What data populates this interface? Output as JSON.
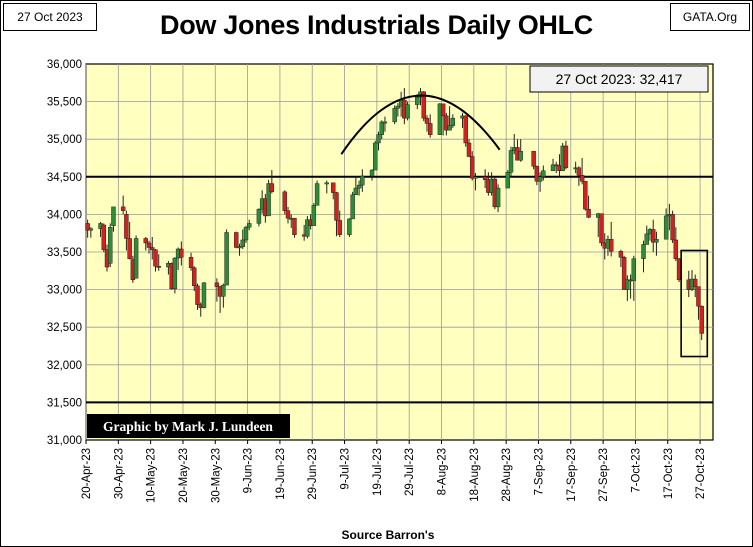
{
  "header": {
    "date": "27 Oct 2023",
    "brand": "GATA.Org",
    "title": "Dow Jones Industrials Daily OHLC"
  },
  "chart_data": {
    "type": "ohlc",
    "title": "Dow Jones Industrials Daily OHLC",
    "source": "Source Barron's",
    "credit": "Graphic by Mark J. Lundeen",
    "current_label": "27 Oct 2023:  32,417",
    "ylim": [
      31000,
      36000
    ],
    "y_ticks": [
      "31,000",
      "31,500",
      "32,000",
      "32,500",
      "33,000",
      "33,500",
      "34,000",
      "34,500",
      "35,000",
      "35,500",
      "36,000"
    ],
    "x_ticks": [
      "20-Apr-23",
      "30-Apr-23",
      "10-May-23",
      "20-May-23",
      "30-May-23",
      "9-Jun-23",
      "19-Jun-23",
      "29-Jun-23",
      "9-Jul-23",
      "19-Jul-23",
      "29-Jul-23",
      "8-Aug-23",
      "18-Aug-23",
      "28-Aug-23",
      "7-Sep-23",
      "17-Sep-23",
      "27-Sep-23",
      "7-Oct-23",
      "17-Oct-23",
      "27-Oct-23"
    ],
    "reference_lines": [
      34500,
      31500
    ],
    "colors": {
      "up": "#2e8b3a",
      "down": "#cc2222",
      "plot_bg": "#ffffc0"
    },
    "series": [
      {
        "d": "2023-04-20",
        "o": 33880,
        "h": 33930,
        "l": 33690,
        "c": 33790
      },
      {
        "d": "2023-04-21",
        "o": 33790,
        "h": 33830,
        "l": 33690,
        "c": 33810
      },
      {
        "d": "2023-04-24",
        "o": 33810,
        "h": 33900,
        "l": 33700,
        "c": 33880
      },
      {
        "d": "2023-04-25",
        "o": 33860,
        "h": 33880,
        "l": 33500,
        "c": 33530
      },
      {
        "d": "2023-04-26",
        "o": 33530,
        "h": 33600,
        "l": 33240,
        "c": 33300
      },
      {
        "d": "2023-04-27",
        "o": 33350,
        "h": 33880,
        "l": 33300,
        "c": 33830
      },
      {
        "d": "2023-04-28",
        "o": 33850,
        "h": 34100,
        "l": 33770,
        "c": 34100
      },
      {
        "d": "2023-05-01",
        "o": 34100,
        "h": 34250,
        "l": 34000,
        "c": 34050
      },
      {
        "d": "2023-05-02",
        "o": 34000,
        "h": 34050,
        "l": 33520,
        "c": 33680
      },
      {
        "d": "2023-05-03",
        "o": 33680,
        "h": 33900,
        "l": 33400,
        "c": 33410
      },
      {
        "d": "2023-05-04",
        "o": 33400,
        "h": 33450,
        "l": 33090,
        "c": 33130
      },
      {
        "d": "2023-05-05",
        "o": 33150,
        "h": 33720,
        "l": 33150,
        "c": 33680
      },
      {
        "d": "2023-05-08",
        "o": 33680,
        "h": 33700,
        "l": 33520,
        "c": 33620
      },
      {
        "d": "2023-05-09",
        "o": 33620,
        "h": 33650,
        "l": 33480,
        "c": 33560
      },
      {
        "d": "2023-05-10",
        "o": 33560,
        "h": 33700,
        "l": 33400,
        "c": 33530
      },
      {
        "d": "2023-05-11",
        "o": 33530,
        "h": 33540,
        "l": 33240,
        "c": 33310
      },
      {
        "d": "2023-05-12",
        "o": 33310,
        "h": 33470,
        "l": 33250,
        "c": 33300
      },
      {
        "d": "2023-05-15",
        "o": 33300,
        "h": 33380,
        "l": 33200,
        "c": 33350
      },
      {
        "d": "2023-05-16",
        "o": 33350,
        "h": 33360,
        "l": 33000,
        "c": 33010
      },
      {
        "d": "2023-05-17",
        "o": 33010,
        "h": 33430,
        "l": 32950,
        "c": 33420
      },
      {
        "d": "2023-05-18",
        "o": 33420,
        "h": 33560,
        "l": 33260,
        "c": 33540
      },
      {
        "d": "2023-05-19",
        "o": 33540,
        "h": 33640,
        "l": 33320,
        "c": 33430
      },
      {
        "d": "2023-05-22",
        "o": 33430,
        "h": 33490,
        "l": 33250,
        "c": 33290
      },
      {
        "d": "2023-05-23",
        "o": 33290,
        "h": 33310,
        "l": 32980,
        "c": 33050
      },
      {
        "d": "2023-05-24",
        "o": 33050,
        "h": 33080,
        "l": 32730,
        "c": 32800
      },
      {
        "d": "2023-05-25",
        "o": 32800,
        "h": 32830,
        "l": 32640,
        "c": 32760
      },
      {
        "d": "2023-05-26",
        "o": 32760,
        "h": 33100,
        "l": 32750,
        "c": 33090
      },
      {
        "d": "2023-05-30",
        "o": 33090,
        "h": 33150,
        "l": 32840,
        "c": 33040
      },
      {
        "d": "2023-05-31",
        "o": 33040,
        "h": 33050,
        "l": 32690,
        "c": 32910
      },
      {
        "d": "2023-06-01",
        "o": 32910,
        "h": 33080,
        "l": 32760,
        "c": 33060
      },
      {
        "d": "2023-06-02",
        "o": 33060,
        "h": 33800,
        "l": 33060,
        "c": 33760
      },
      {
        "d": "2023-06-05",
        "o": 33760,
        "h": 33770,
        "l": 33550,
        "c": 33560
      },
      {
        "d": "2023-06-06",
        "o": 33560,
        "h": 33610,
        "l": 33450,
        "c": 33570
      },
      {
        "d": "2023-06-07",
        "o": 33570,
        "h": 33800,
        "l": 33540,
        "c": 33660
      },
      {
        "d": "2023-06-08",
        "o": 33660,
        "h": 33850,
        "l": 33620,
        "c": 33830
      },
      {
        "d": "2023-06-09",
        "o": 33830,
        "h": 33930,
        "l": 33790,
        "c": 33880
      },
      {
        "d": "2023-06-12",
        "o": 33880,
        "h": 34080,
        "l": 33840,
        "c": 34070
      },
      {
        "d": "2023-06-13",
        "o": 34070,
        "h": 34320,
        "l": 34010,
        "c": 34210
      },
      {
        "d": "2023-06-14",
        "o": 34210,
        "h": 34270,
        "l": 33890,
        "c": 33980
      },
      {
        "d": "2023-06-15",
        "o": 33980,
        "h": 34460,
        "l": 33980,
        "c": 34410
      },
      {
        "d": "2023-06-16",
        "o": 34410,
        "h": 34590,
        "l": 34280,
        "c": 34300
      },
      {
        "d": "2023-06-20",
        "o": 34300,
        "h": 34320,
        "l": 34000,
        "c": 34050
      },
      {
        "d": "2023-06-21",
        "o": 34050,
        "h": 34100,
        "l": 33880,
        "c": 33950
      },
      {
        "d": "2023-06-22",
        "o": 33950,
        "h": 34000,
        "l": 33820,
        "c": 33950
      },
      {
        "d": "2023-06-23",
        "o": 33950,
        "h": 33950,
        "l": 33690,
        "c": 33730
      },
      {
        "d": "2023-06-26",
        "o": 33730,
        "h": 33860,
        "l": 33650,
        "c": 33710
      },
      {
        "d": "2023-06-27",
        "o": 33710,
        "h": 33980,
        "l": 33680,
        "c": 33930
      },
      {
        "d": "2023-06-28",
        "o": 33930,
        "h": 34000,
        "l": 33800,
        "c": 33850
      },
      {
        "d": "2023-06-29",
        "o": 33850,
        "h": 34150,
        "l": 33850,
        "c": 34120
      },
      {
        "d": "2023-06-30",
        "o": 34120,
        "h": 34450,
        "l": 34120,
        "c": 34410
      },
      {
        "d": "2023-07-03",
        "o": 34410,
        "h": 34450,
        "l": 34280,
        "c": 34420
      },
      {
        "d": "2023-07-05",
        "o": 34420,
        "h": 34420,
        "l": 34200,
        "c": 34290
      },
      {
        "d": "2023-07-06",
        "o": 34290,
        "h": 34300,
        "l": 33710,
        "c": 33920
      },
      {
        "d": "2023-07-07",
        "o": 33920,
        "h": 34050,
        "l": 33700,
        "c": 33730
      },
      {
        "d": "2023-07-10",
        "o": 33730,
        "h": 33950,
        "l": 33700,
        "c": 33940
      },
      {
        "d": "2023-07-11",
        "o": 33940,
        "h": 34300,
        "l": 33940,
        "c": 34260
      },
      {
        "d": "2023-07-12",
        "o": 34260,
        "h": 34500,
        "l": 34260,
        "c": 34350
      },
      {
        "d": "2023-07-13",
        "o": 34350,
        "h": 34450,
        "l": 34250,
        "c": 34390
      },
      {
        "d": "2023-07-14",
        "o": 34390,
        "h": 34600,
        "l": 34300,
        "c": 34510
      },
      {
        "d": "2023-07-17",
        "o": 34510,
        "h": 34600,
        "l": 34450,
        "c": 34590
      },
      {
        "d": "2023-07-18",
        "o": 34590,
        "h": 34980,
        "l": 34590,
        "c": 34950
      },
      {
        "d": "2023-07-19",
        "o": 34950,
        "h": 35100,
        "l": 34850,
        "c": 35060
      },
      {
        "d": "2023-07-20",
        "o": 35060,
        "h": 35250,
        "l": 35000,
        "c": 35230
      },
      {
        "d": "2023-07-21",
        "o": 35230,
        "h": 35300,
        "l": 35100,
        "c": 35230
      },
      {
        "d": "2023-07-24",
        "o": 35230,
        "h": 35450,
        "l": 35200,
        "c": 35410
      },
      {
        "d": "2023-07-25",
        "o": 35410,
        "h": 35480,
        "l": 35300,
        "c": 35440
      },
      {
        "d": "2023-07-26",
        "o": 35440,
        "h": 35630,
        "l": 35300,
        "c": 35520
      },
      {
        "d": "2023-07-27",
        "o": 35520,
        "h": 35680,
        "l": 35200,
        "c": 35280
      },
      {
        "d": "2023-07-28",
        "o": 35280,
        "h": 35500,
        "l": 35250,
        "c": 35460
      },
      {
        "d": "2023-07-31",
        "o": 35460,
        "h": 35600,
        "l": 35400,
        "c": 35560
      },
      {
        "d": "2023-08-01",
        "o": 35560,
        "h": 35680,
        "l": 35450,
        "c": 35630
      },
      {
        "d": "2023-08-02",
        "o": 35630,
        "h": 35640,
        "l": 35240,
        "c": 35280
      },
      {
        "d": "2023-08-03",
        "o": 35280,
        "h": 35320,
        "l": 35100,
        "c": 35210
      },
      {
        "d": "2023-08-04",
        "o": 35210,
        "h": 35330,
        "l": 35020,
        "c": 35060
      },
      {
        "d": "2023-08-07",
        "o": 35060,
        "h": 35480,
        "l": 35060,
        "c": 35470
      },
      {
        "d": "2023-08-08",
        "o": 35470,
        "h": 35470,
        "l": 35050,
        "c": 35310
      },
      {
        "d": "2023-08-09",
        "o": 35310,
        "h": 35350,
        "l": 35050,
        "c": 35120
      },
      {
        "d": "2023-08-10",
        "o": 35120,
        "h": 35440,
        "l": 35120,
        "c": 35180
      },
      {
        "d": "2023-08-11",
        "o": 35180,
        "h": 35330,
        "l": 35150,
        "c": 35280
      },
      {
        "d": "2023-08-14",
        "o": 35280,
        "h": 35350,
        "l": 35150,
        "c": 35310
      },
      {
        "d": "2023-08-15",
        "o": 35310,
        "h": 35320,
        "l": 34900,
        "c": 34950
      },
      {
        "d": "2023-08-16",
        "o": 34950,
        "h": 35000,
        "l": 34760,
        "c": 34770
      },
      {
        "d": "2023-08-17",
        "o": 34770,
        "h": 34840,
        "l": 34450,
        "c": 34480
      },
      {
        "d": "2023-08-18",
        "o": 34480,
        "h": 34550,
        "l": 34320,
        "c": 34500
      },
      {
        "d": "2023-08-21",
        "o": 34500,
        "h": 34600,
        "l": 34350,
        "c": 34460
      },
      {
        "d": "2023-08-22",
        "o": 34460,
        "h": 34560,
        "l": 34250,
        "c": 34290
      },
      {
        "d": "2023-08-23",
        "o": 34290,
        "h": 34560,
        "l": 34250,
        "c": 34470
      },
      {
        "d": "2023-08-24",
        "o": 34470,
        "h": 34500,
        "l": 34070,
        "c": 34100
      },
      {
        "d": "2023-08-25",
        "o": 34100,
        "h": 34400,
        "l": 34030,
        "c": 34350
      },
      {
        "d": "2023-08-28",
        "o": 34350,
        "h": 34590,
        "l": 34350,
        "c": 34560
      },
      {
        "d": "2023-08-29",
        "o": 34560,
        "h": 34900,
        "l": 34510,
        "c": 34850
      },
      {
        "d": "2023-08-30",
        "o": 34850,
        "h": 35070,
        "l": 34800,
        "c": 34890
      },
      {
        "d": "2023-08-31",
        "o": 34890,
        "h": 35000,
        "l": 34720,
        "c": 34720
      },
      {
        "d": "2023-09-01",
        "o": 34720,
        "h": 35000,
        "l": 34700,
        "c": 34840
      },
      {
        "d": "2023-09-05",
        "o": 34840,
        "h": 34840,
        "l": 34600,
        "c": 34640
      },
      {
        "d": "2023-09-06",
        "o": 34640,
        "h": 34650,
        "l": 34390,
        "c": 34440
      },
      {
        "d": "2023-09-07",
        "o": 34440,
        "h": 34560,
        "l": 34300,
        "c": 34500
      },
      {
        "d": "2023-09-08",
        "o": 34500,
        "h": 34650,
        "l": 34450,
        "c": 34580
      },
      {
        "d": "2023-09-11",
        "o": 34580,
        "h": 34740,
        "l": 34580,
        "c": 34660
      },
      {
        "d": "2023-09-12",
        "o": 34660,
        "h": 34700,
        "l": 34550,
        "c": 34650
      },
      {
        "d": "2023-09-13",
        "o": 34650,
        "h": 34800,
        "l": 34500,
        "c": 34580
      },
      {
        "d": "2023-09-14",
        "o": 34580,
        "h": 34950,
        "l": 34580,
        "c": 34910
      },
      {
        "d": "2023-09-15",
        "o": 34910,
        "h": 34980,
        "l": 34600,
        "c": 34620
      },
      {
        "d": "2023-09-18",
        "o": 34620,
        "h": 34700,
        "l": 34550,
        "c": 34620
      },
      {
        "d": "2023-09-19",
        "o": 34620,
        "h": 34640,
        "l": 34380,
        "c": 34520
      },
      {
        "d": "2023-09-20",
        "o": 34520,
        "h": 34750,
        "l": 34400,
        "c": 34440
      },
      {
        "d": "2023-09-21",
        "o": 34440,
        "h": 34440,
        "l": 34050,
        "c": 34070
      },
      {
        "d": "2023-09-22",
        "o": 34070,
        "h": 34250,
        "l": 33950,
        "c": 33960
      },
      {
        "d": "2023-09-25",
        "o": 33960,
        "h": 34020,
        "l": 33700,
        "c": 34010
      },
      {
        "d": "2023-09-26",
        "o": 34010,
        "h": 34010,
        "l": 33580,
        "c": 33620
      },
      {
        "d": "2023-09-27",
        "o": 33620,
        "h": 33750,
        "l": 33400,
        "c": 33550
      },
      {
        "d": "2023-09-28",
        "o": 33550,
        "h": 33720,
        "l": 33450,
        "c": 33670
      },
      {
        "d": "2023-09-29",
        "o": 33670,
        "h": 33900,
        "l": 33440,
        "c": 33510
      },
      {
        "d": "2023-10-02",
        "o": 33510,
        "h": 33530,
        "l": 33300,
        "c": 33430
      },
      {
        "d": "2023-10-03",
        "o": 33430,
        "h": 33450,
        "l": 33000,
        "c": 33000
      },
      {
        "d": "2023-10-04",
        "o": 33000,
        "h": 33190,
        "l": 32850,
        "c": 33130
      },
      {
        "d": "2023-10-05",
        "o": 33130,
        "h": 33200,
        "l": 32880,
        "c": 33120
      },
      {
        "d": "2023-10-06",
        "o": 33120,
        "h": 33450,
        "l": 32850,
        "c": 33410
      },
      {
        "d": "2023-10-09",
        "o": 33410,
        "h": 33650,
        "l": 33230,
        "c": 33600
      },
      {
        "d": "2023-10-10",
        "o": 33600,
        "h": 33850,
        "l": 33600,
        "c": 33740
      },
      {
        "d": "2023-10-11",
        "o": 33740,
        "h": 33820,
        "l": 33650,
        "c": 33800
      },
      {
        "d": "2023-10-12",
        "o": 33800,
        "h": 33930,
        "l": 33500,
        "c": 33630
      },
      {
        "d": "2023-10-13",
        "o": 33630,
        "h": 33770,
        "l": 33450,
        "c": 33670
      },
      {
        "d": "2023-10-16",
        "o": 33670,
        "h": 34080,
        "l": 33670,
        "c": 33980
      },
      {
        "d": "2023-10-17",
        "o": 33980,
        "h": 34140,
        "l": 33790,
        "c": 34000
      },
      {
        "d": "2023-10-18",
        "o": 34000,
        "h": 34050,
        "l": 33620,
        "c": 33660
      },
      {
        "d": "2023-10-19",
        "o": 33660,
        "h": 33830,
        "l": 33380,
        "c": 33410
      },
      {
        "d": "2023-10-20",
        "o": 33410,
        "h": 33420,
        "l": 33100,
        "c": 33130
      },
      {
        "d": "2023-10-23",
        "o": 33130,
        "h": 33250,
        "l": 32900,
        "c": 33000
      },
      {
        "d": "2023-10-24",
        "o": 33000,
        "h": 33260,
        "l": 32980,
        "c": 33140
      },
      {
        "d": "2023-10-25",
        "o": 33140,
        "h": 33200,
        "l": 32900,
        "c": 33040
      },
      {
        "d": "2023-10-26",
        "o": 33040,
        "h": 33040,
        "l": 32600,
        "c": 32780
      },
      {
        "d": "2023-10-27",
        "o": 32780,
        "h": 32790,
        "l": 32330,
        "c": 32417
      }
    ]
  }
}
